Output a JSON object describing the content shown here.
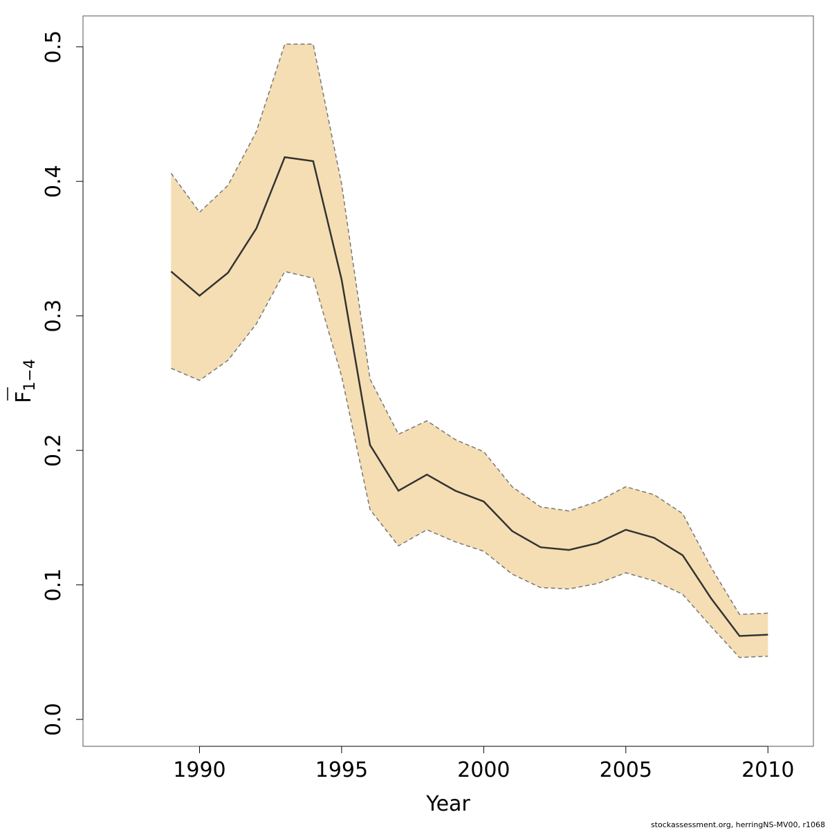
{
  "chart_data": {
    "type": "area",
    "title": "",
    "xlabel": "Year",
    "ylabel_main": "F",
    "ylabel_sub": "1−4",
    "x": [
      1989,
      1990,
      1991,
      1992,
      1993,
      1994,
      1995,
      1996,
      1997,
      1998,
      1999,
      2000,
      2001,
      2002,
      2003,
      2004,
      2005,
      2006,
      2007,
      2008,
      2009,
      2010
    ],
    "series": [
      {
        "role": "estimate",
        "values": [
          0.333,
          0.315,
          0.332,
          0.365,
          0.418,
          0.415,
          0.327,
          0.204,
          0.17,
          0.182,
          0.17,
          0.162,
          0.14,
          0.128,
          0.126,
          0.131,
          0.141,
          0.135,
          0.122,
          0.09,
          0.062,
          0.063
        ]
      },
      {
        "role": "upper",
        "values": [
          0.406,
          0.377,
          0.397,
          0.437,
          0.502,
          0.502,
          0.398,
          0.253,
          0.212,
          0.222,
          0.208,
          0.199,
          0.173,
          0.158,
          0.155,
          0.162,
          0.173,
          0.167,
          0.153,
          0.113,
          0.078,
          0.079
        ]
      },
      {
        "role": "lower",
        "values": [
          0.261,
          0.252,
          0.267,
          0.294,
          0.333,
          0.328,
          0.255,
          0.156,
          0.129,
          0.141,
          0.132,
          0.125,
          0.108,
          0.098,
          0.097,
          0.101,
          0.109,
          0.103,
          0.093,
          0.069,
          0.046,
          0.047
        ]
      }
    ],
    "xlim": [
      1985.9,
      2011.6
    ],
    "ylim": [
      -0.02,
      0.523
    ],
    "x_ticks": [
      "1990",
      "1995",
      "2000",
      "2005",
      "2010"
    ],
    "y_ticks": [
      "0.0",
      "0.1",
      "0.2",
      "0.3",
      "0.4",
      "0.5"
    ],
    "grid": false,
    "legend": "none",
    "colors": {
      "band": "#f5deb3",
      "band_border": "#777777",
      "line": "#333333"
    }
  },
  "footer": "stockassessment.org, herringNS-MV00, r1068"
}
